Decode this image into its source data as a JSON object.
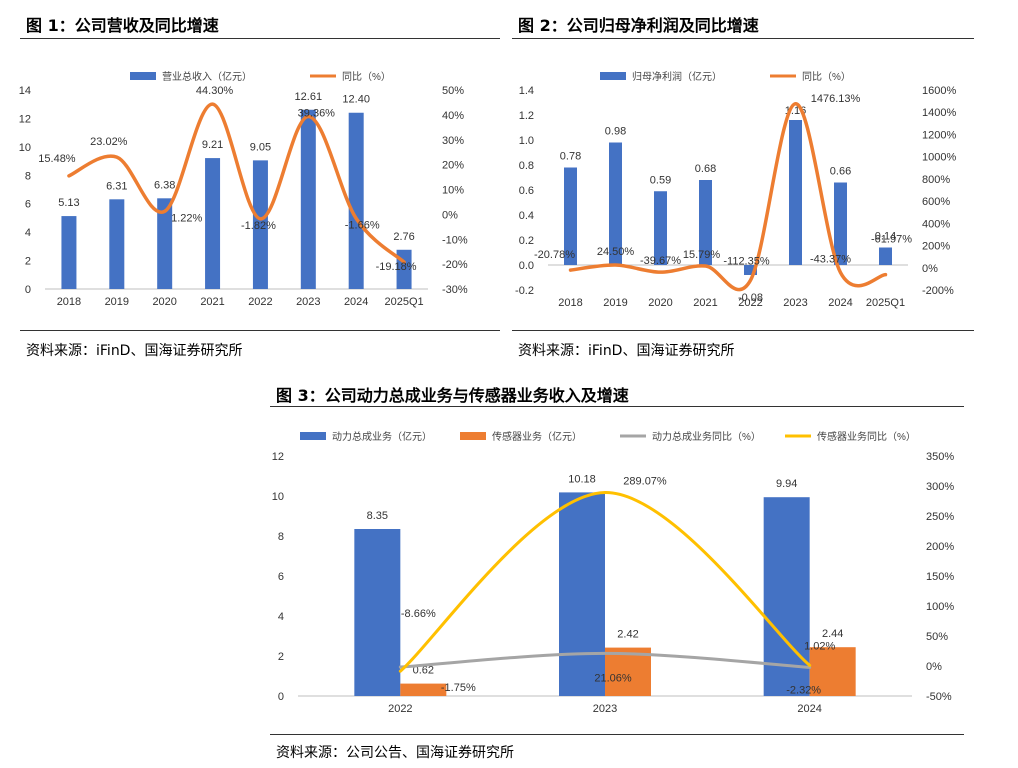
{
  "colors": {
    "blue": "#4472C4",
    "orange": "#ED7D31",
    "gray": "#A5A5A5",
    "yellow": "#FFC000"
  },
  "fig1": {
    "title": "图 1：公司营收及同比增速",
    "source": "资料来源：iFinD、国海证券研究所",
    "chart_data": {
      "type": "bar",
      "categories": [
        "2018",
        "2019",
        "2020",
        "2021",
        "2022",
        "2023",
        "2024",
        "2025Q1"
      ],
      "left_ticks": [
        "14",
        "12",
        "10",
        "8",
        "6",
        "4",
        "2",
        "0"
      ],
      "right_ticks": [
        "50%",
        "40%",
        "30%",
        "20%",
        "10%",
        "0%",
        "-10%",
        "-20%",
        "-30%"
      ],
      "ylim": [
        0,
        14
      ],
      "y2lim": [
        -30,
        50
      ],
      "legend_position": "top",
      "series": [
        {
          "name": "营业总收入（亿元）",
          "kind": "bar",
          "axis": "left",
          "color": "#4472C4",
          "values": [
            5.13,
            6.31,
            6.38,
            9.21,
            9.05,
            12.61,
            12.4,
            2.76
          ],
          "labels": [
            "5.13",
            "6.31",
            "6.38",
            "9.21",
            "9.05",
            "12.61",
            "12.40",
            "2.76"
          ]
        },
        {
          "name": "同比（%）",
          "kind": "line",
          "axis": "right",
          "color": "#ED7D31",
          "values": [
            15.48,
            23.02,
            1.22,
            44.3,
            -1.82,
            39.36,
            -1.66,
            -19.18
          ],
          "labels": [
            "15.48%",
            "23.02%",
            "1.22%",
            "44.30%",
            "-1.82%",
            "39.36%",
            "-1.66%",
            "-19.18%"
          ]
        }
      ]
    }
  },
  "fig2": {
    "title": "图 2：公司归母净利润及同比增速",
    "source": "资料来源：iFinD、国海证券研究所",
    "chart_data": {
      "type": "bar",
      "categories": [
        "2018",
        "2019",
        "2020",
        "2021",
        "2022",
        "2023",
        "2024",
        "2025Q1"
      ],
      "left_ticks": [
        "1.4",
        "1.2",
        "1.0",
        "0.8",
        "0.6",
        "0.4",
        "0.2",
        "0.0",
        "-0.2"
      ],
      "right_ticks": [
        "1600%",
        "1400%",
        "1200%",
        "1000%",
        "800%",
        "600%",
        "400%",
        "200%",
        "0%",
        "-200%"
      ],
      "ylim": [
        -0.2,
        1.4
      ],
      "y2lim": [
        -200,
        1600
      ],
      "legend_position": "top",
      "series": [
        {
          "name": "归母净利润（亿元）",
          "kind": "bar",
          "axis": "left",
          "color": "#4472C4",
          "values": [
            0.78,
            0.98,
            0.59,
            0.68,
            -0.08,
            1.16,
            0.66,
            0.14
          ],
          "labels": [
            "0.78",
            "0.98",
            "0.59",
            "0.68",
            "-0.08",
            "1.16",
            "0.66",
            "0.14"
          ]
        },
        {
          "name": "同比（%）",
          "kind": "line",
          "axis": "right",
          "color": "#ED7D31",
          "values": [
            -20.78,
            24.5,
            -39.67,
            15.79,
            -112.35,
            1476.13,
            -43.37,
            -61.97
          ],
          "labels": [
            "-20.78%",
            "24.50%",
            "-39.67%",
            "15.79%",
            "-112.35%",
            "1476.13%",
            "-43.37%",
            "-61.97%"
          ]
        }
      ]
    }
  },
  "fig3": {
    "title": "图 3：公司动力总成业务与传感器业务收入及增速",
    "source": "资料来源：公司公告、国海证券研究所",
    "chart_data": {
      "type": "bar",
      "categories": [
        "2022",
        "2023",
        "2024"
      ],
      "left_ticks": [
        "12",
        "10",
        "8",
        "6",
        "4",
        "2",
        "0"
      ],
      "right_ticks": [
        "350%",
        "300%",
        "250%",
        "200%",
        "150%",
        "100%",
        "50%",
        "0%",
        "-50%"
      ],
      "ylim": [
        0,
        12
      ],
      "y2lim": [
        -50,
        350
      ],
      "legend_position": "top",
      "series": [
        {
          "name": "动力总成业务（亿元）",
          "kind": "bar",
          "axis": "left",
          "color": "#4472C4",
          "values": [
            8.35,
            10.18,
            9.94
          ],
          "labels": [
            "8.35",
            "10.18",
            "9.94"
          ]
        },
        {
          "name": "传感器业务（亿元）",
          "kind": "bar",
          "axis": "left",
          "color": "#ED7D31",
          "values": [
            0.62,
            2.42,
            2.44
          ],
          "labels": [
            "0.62",
            "2.42",
            "2.44"
          ]
        },
        {
          "name": "动力总成业务同比（%）",
          "kind": "line",
          "axis": "right",
          "color": "#A5A5A5",
          "values": [
            -1.75,
            21.06,
            -2.32
          ],
          "labels": [
            "-1.75%",
            "21.06%",
            "-2.32%"
          ]
        },
        {
          "name": "传感器业务同比（%）",
          "kind": "line",
          "axis": "right",
          "color": "#FFC000",
          "values": [
            -8.66,
            289.07,
            1.02
          ],
          "labels": [
            "-8.66%",
            "289.07%",
            "1.02%"
          ]
        }
      ]
    }
  }
}
